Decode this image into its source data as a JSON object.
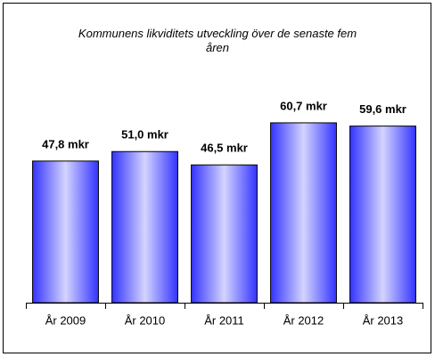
{
  "chart_data": {
    "type": "bar",
    "title": "Kommunens likviditets utveckling över de senaste fem åren",
    "categories": [
      "År 2009",
      "År 2010",
      "År 2011",
      "År 2012",
      "År 2013"
    ],
    "values": [
      47.8,
      51.0,
      46.5,
      60.7,
      59.6
    ],
    "value_labels": [
      "47,8 mkr",
      "51,0 mkr",
      "46,5 mkr",
      "60,7 mkr",
      "59,6 mkr"
    ],
    "color": "#3333ff",
    "ylim": [
      0,
      70
    ]
  }
}
